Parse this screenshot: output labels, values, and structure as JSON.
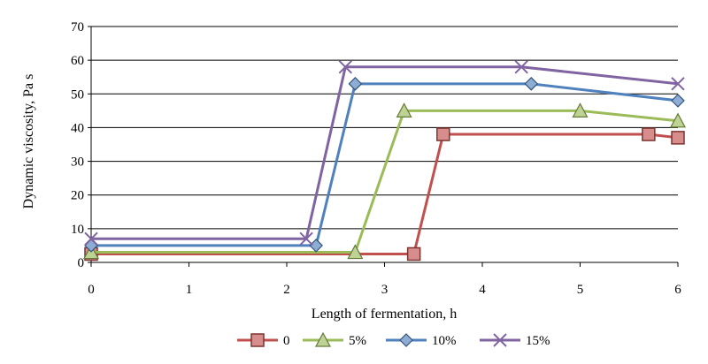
{
  "chart_data": {
    "type": "line",
    "title": "",
    "xlabel": "Length of fermentation, h",
    "ylabel": "Dynamic viscosity, Pa s",
    "xlim": [
      0,
      6
    ],
    "ylim": [
      0,
      70
    ],
    "x_ticks": [
      "0",
      "1",
      "2",
      "3",
      "4",
      "5",
      "6"
    ],
    "y_ticks": [
      "0",
      "10",
      "20",
      "30",
      "40",
      "50",
      "60",
      "70"
    ],
    "grid": "horizontal",
    "legend_position": "bottom",
    "series": [
      {
        "name": "0",
        "color": "#C0504D",
        "marker": "square",
        "x": [
          0,
          3.3,
          3.6,
          5.7,
          6
        ],
        "y": [
          2.5,
          2.5,
          38,
          38,
          37
        ]
      },
      {
        "name": "5%",
        "color": "#9BBB59",
        "marker": "triangle",
        "x": [
          0,
          2.7,
          3.2,
          5.0,
          6
        ],
        "y": [
          3,
          3,
          45,
          45,
          42
        ]
      },
      {
        "name": "10%",
        "color": "#4F81BD",
        "marker": "diamond",
        "x": [
          0,
          2.3,
          2.7,
          4.5,
          6
        ],
        "y": [
          5,
          5,
          53,
          53,
          48
        ]
      },
      {
        "name": "15%",
        "color": "#8064A2",
        "marker": "x",
        "x": [
          0,
          2.2,
          2.6,
          4.4,
          6
        ],
        "y": [
          7,
          7,
          58,
          58,
          53
        ]
      }
    ]
  }
}
